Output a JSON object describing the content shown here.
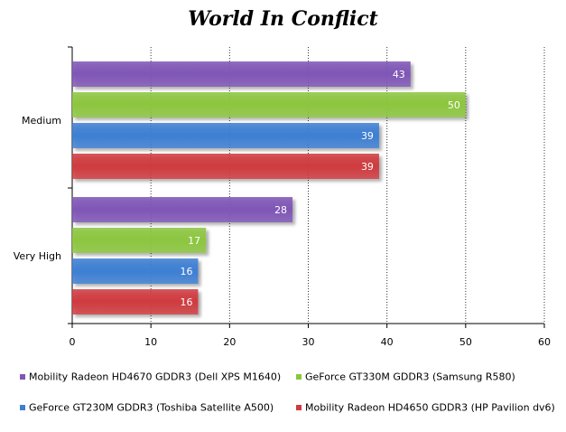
{
  "chart_data": {
    "type": "bar",
    "orientation": "horizontal",
    "title": "World In Conflict",
    "xlabel": "",
    "ylabel": "",
    "xlim": [
      0,
      60
    ],
    "x_ticks": [
      0,
      10,
      20,
      30,
      40,
      50,
      60
    ],
    "grid": "vertical",
    "legend_position": "bottom",
    "categories": [
      "Medium",
      "Very High"
    ],
    "series": [
      {
        "name": "Mobility Radeon HD4670 GDDR3 (Dell XPS M1640)",
        "color": "#7f56b6",
        "values": [
          43,
          28
        ]
      },
      {
        "name": "GeForce GT330M GDDR3 (Samsung R580)",
        "color": "#8cc63f",
        "values": [
          50,
          17
        ]
      },
      {
        "name": "GeForce GT230M GDDR3 (Toshiba Satellite A500)",
        "color": "#3d7fd3",
        "values": [
          39,
          16
        ]
      },
      {
        "name": "Mobility Radeon HD4650 GDDR3 (HP Pavilion dv6)",
        "color": "#cf3b3f",
        "values": [
          39,
          16
        ]
      }
    ]
  }
}
